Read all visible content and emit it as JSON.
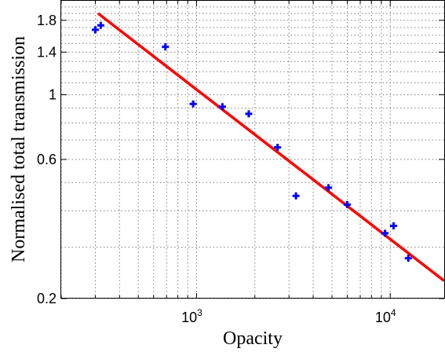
{
  "chart_data": {
    "type": "scatter",
    "title": "",
    "xlabel": "Opacity",
    "ylabel": "Normalised total transmission",
    "x_scale": "log",
    "y_scale": "log",
    "xlim": [
      200,
      19000
    ],
    "ylim": [
      0.2,
      2.1
    ],
    "x_ticks": [
      {
        "value": 1000,
        "base": "10",
        "exp": "3"
      },
      {
        "value": 10000,
        "base": "10",
        "exp": "4"
      }
    ],
    "y_ticks": [
      {
        "value": 0.2,
        "label": "0.2"
      },
      {
        "value": 0.6,
        "label": "0.6"
      },
      {
        "value": 1.0,
        "label": "1"
      },
      {
        "value": 1.4,
        "label": "1.4"
      },
      {
        "value": 1.8,
        "label": "1.8"
      }
    ],
    "grid": true,
    "series": [
      {
        "kind": "points",
        "marker": "plus",
        "color": "#0000ff",
        "points": [
          [
            300,
            1.67
          ],
          [
            320,
            1.73
          ],
          [
            690,
            1.46
          ],
          [
            960,
            0.93
          ],
          [
            1360,
            0.91
          ],
          [
            1860,
            0.86
          ],
          [
            2620,
            0.66
          ],
          [
            3260,
            0.45
          ],
          [
            4800,
            0.48
          ],
          [
            6000,
            0.42
          ],
          [
            9400,
            0.335
          ],
          [
            10400,
            0.355
          ],
          [
            12400,
            0.275
          ]
        ]
      },
      {
        "kind": "fit",
        "color": "#ff0000",
        "points": [
          [
            310,
            1.9
          ],
          [
            19000,
            0.23
          ]
        ]
      }
    ]
  }
}
